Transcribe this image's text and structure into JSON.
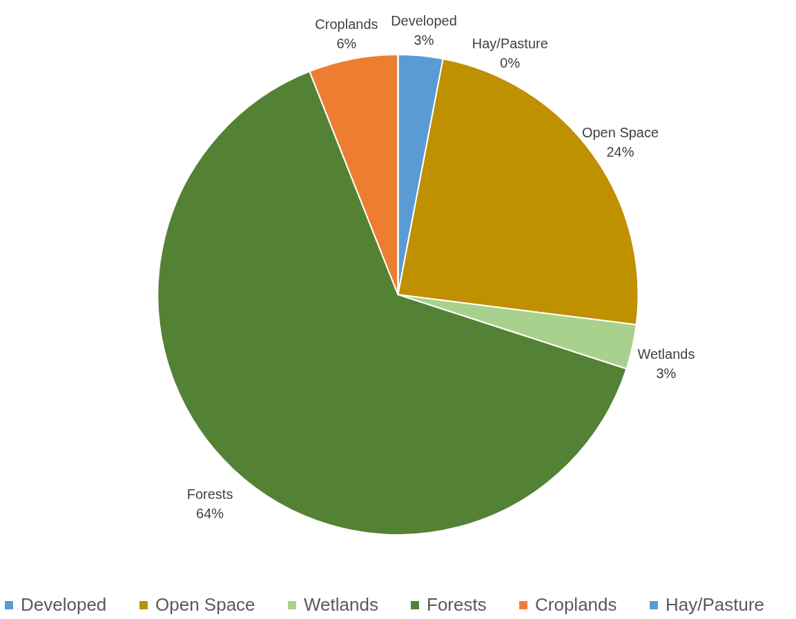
{
  "chart_data": {
    "type": "pie",
    "categories": [
      "Developed",
      "Open Space",
      "Wetlands",
      "Forests",
      "Croplands",
      "Hay/Pasture"
    ],
    "values": [
      3,
      24,
      3,
      64,
      6,
      0
    ],
    "colors": [
      "#5b9bd5",
      "#bf9000",
      "#a9d18e",
      "#548235",
      "#ed7d31",
      "#5b9bd5"
    ],
    "value_labels": [
      "3%",
      "24%",
      "3%",
      "64%",
      "6%",
      "0%"
    ],
    "legend": "bottom"
  }
}
